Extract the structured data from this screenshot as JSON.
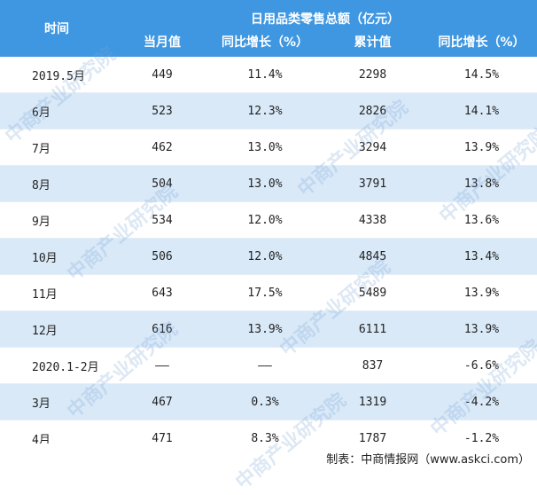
{
  "header": {
    "time_label": "时间",
    "group_title": "日用品类零售总额（亿元）",
    "columns": [
      "当月值",
      "同比增长（%）",
      "累计值",
      "同比增长（%）"
    ]
  },
  "rows": [
    {
      "period": "2019.5月",
      "monthly": "449",
      "monthly_yoy": "11.4%",
      "cumulative": "2298",
      "cumulative_yoy": "14.5%"
    },
    {
      "period": "6月",
      "monthly": "523",
      "monthly_yoy": "12.3%",
      "cumulative": "2826",
      "cumulative_yoy": "14.1%"
    },
    {
      "period": "7月",
      "monthly": "462",
      "monthly_yoy": "13.0%",
      "cumulative": "3294",
      "cumulative_yoy": "13.9%"
    },
    {
      "period": "8月",
      "monthly": "504",
      "monthly_yoy": "13.0%",
      "cumulative": "3791",
      "cumulative_yoy": "13.8%"
    },
    {
      "period": "9月",
      "monthly": "534",
      "monthly_yoy": "12.0%",
      "cumulative": "4338",
      "cumulative_yoy": "13.6%"
    },
    {
      "period": "10月",
      "monthly": "506",
      "monthly_yoy": "12.0%",
      "cumulative": "4845",
      "cumulative_yoy": "13.4%"
    },
    {
      "period": "11月",
      "monthly": "643",
      "monthly_yoy": "17.5%",
      "cumulative": "5489",
      "cumulative_yoy": "13.9%"
    },
    {
      "period": "12月",
      "monthly": "616",
      "monthly_yoy": "13.9%",
      "cumulative": "6111",
      "cumulative_yoy": "13.9%"
    },
    {
      "period": "2020.1-2月",
      "monthly": "——",
      "monthly_yoy": "——",
      "cumulative": "837",
      "cumulative_yoy": "-6.6%"
    },
    {
      "period": "3月",
      "monthly": "467",
      "monthly_yoy": "0.3%",
      "cumulative": "1319",
      "cumulative_yoy": "-4.2%"
    },
    {
      "period": "4月",
      "monthly": "471",
      "monthly_yoy": "8.3%",
      "cumulative": "1787",
      "cumulative_yoy": "-1.2%"
    }
  ],
  "footer": {
    "source": "制表：中商情报网（www.askci.com）"
  },
  "watermark": {
    "text": "中商产业研究院"
  }
}
